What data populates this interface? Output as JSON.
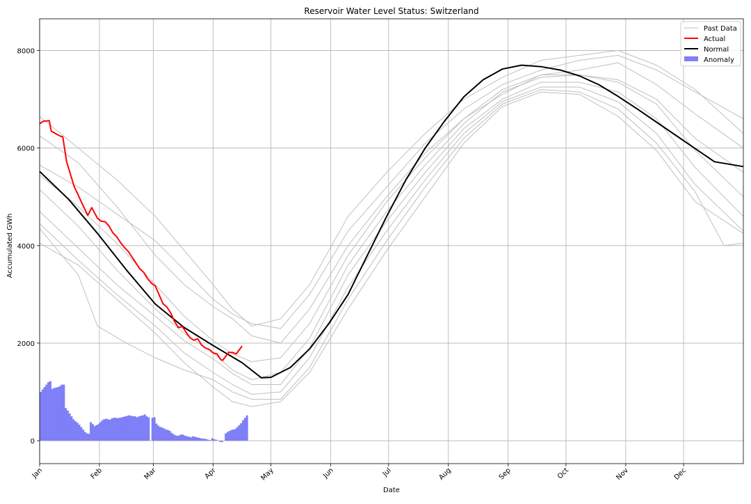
{
  "chart_data": {
    "type": "line",
    "title": "Reservoir Water Level Status: Switzerland",
    "xlabel": "Date",
    "ylabel": "Accumulated GWh",
    "x_ticks": [
      "Jan",
      "Feb",
      "Mar",
      "Apr",
      "May",
      "Jun",
      "Jul",
      "Aug",
      "Sep",
      "Oct",
      "Nov",
      "Dec"
    ],
    "y_ticks": [
      0,
      2000,
      4000,
      6000,
      8000
    ],
    "xlim": [
      0,
      365
    ],
    "ylim": [
      -470,
      8650
    ],
    "grid": true,
    "legend": {
      "placement": "top-right",
      "entries": [
        "Past Data",
        "Actual",
        "Normal",
        "Anomaly"
      ]
    },
    "colors": {
      "past": "#bfbfbf",
      "actual": "#ff0000",
      "normal": "#000000",
      "anomaly": "#7f7ff7"
    },
    "series": [
      {
        "name": "Normal",
        "x": [
          0,
          15,
          30,
          45,
          60,
          75,
          90,
          105,
          115,
          120,
          130,
          140,
          150,
          160,
          170,
          180,
          190,
          200,
          210,
          220,
          230,
          240,
          250,
          260,
          270,
          280,
          290,
          300,
          310,
          320,
          330,
          340,
          350,
          365
        ],
        "values": [
          5520,
          4950,
          4250,
          3500,
          2800,
          2320,
          1950,
          1600,
          1290,
          1300,
          1500,
          1880,
          2400,
          3000,
          3800,
          4600,
          5350,
          6000,
          6550,
          7050,
          7400,
          7620,
          7700,
          7670,
          7600,
          7480,
          7300,
          7060,
          6800,
          6530,
          6260,
          5990,
          5720,
          5620
        ]
      },
      {
        "name": "Actual",
        "x": [
          0,
          2,
          5,
          6,
          9,
          11,
          12,
          14,
          18,
          19,
          21,
          23,
          25,
          27,
          30,
          32,
          34,
          36,
          38,
          40,
          42,
          44,
          46,
          48,
          50,
          52,
          54,
          56,
          58,
          60,
          62,
          64,
          66,
          68,
          70,
          72,
          74,
          76,
          78,
          80,
          82,
          84,
          86,
          88,
          90,
          92,
          94,
          95,
          98,
          100,
          102,
          105
        ],
        "values": [
          6500,
          6550,
          6560,
          6350,
          6280,
          6240,
          6230,
          5720,
          5200,
          5120,
          4950,
          4780,
          4620,
          4780,
          4560,
          4500,
          4490,
          4400,
          4260,
          4180,
          4060,
          3960,
          3880,
          3760,
          3640,
          3520,
          3450,
          3320,
          3230,
          3170,
          2990,
          2810,
          2740,
          2620,
          2440,
          2320,
          2340,
          2220,
          2110,
          2060,
          2090,
          1960,
          1900,
          1870,
          1800,
          1780,
          1660,
          1650,
          1810,
          1810,
          1780,
          1940
        ]
      },
      {
        "name": "Past Data",
        "values": [
          [
            [
              0,
              6650
            ],
            [
              20,
              6000
            ],
            [
              40,
              5350
            ],
            [
              60,
              4600
            ],
            [
              75,
              3900
            ],
            [
              90,
              3200
            ],
            [
              100,
              2700
            ],
            [
              110,
              2350
            ],
            [
              125,
              2500
            ],
            [
              140,
              3200
            ],
            [
              160,
              4600
            ],
            [
              180,
              5500
            ],
            [
              200,
              6300
            ],
            [
              220,
              7000
            ],
            [
              240,
              7450
            ],
            [
              260,
              7800
            ],
            [
              280,
              7900
            ],
            [
              300,
              8000
            ],
            [
              320,
              7700
            ],
            [
              340,
              7200
            ],
            [
              365,
              6300
            ]
          ],
          [
            [
              0,
              5650
            ],
            [
              20,
              5200
            ],
            [
              40,
              4650
            ],
            [
              60,
              4100
            ],
            [
              75,
              3500
            ],
            [
              90,
              2900
            ],
            [
              100,
              2600
            ],
            [
              110,
              2400
            ],
            [
              125,
              2300
            ],
            [
              140,
              3000
            ],
            [
              160,
              4300
            ],
            [
              180,
              5200
            ],
            [
              200,
              6100
            ],
            [
              220,
              6800
            ],
            [
              240,
              7300
            ],
            [
              260,
              7600
            ],
            [
              280,
              7800
            ],
            [
              300,
              7900
            ],
            [
              320,
              7600
            ],
            [
              340,
              7150
            ],
            [
              365,
              6600
            ]
          ],
          [
            [
              0,
              6250
            ],
            [
              20,
              5700
            ],
            [
              40,
              4800
            ],
            [
              60,
              3800
            ],
            [
              75,
              3200
            ],
            [
              90,
              2750
            ],
            [
              100,
              2500
            ],
            [
              110,
              2150
            ],
            [
              125,
              2000
            ],
            [
              140,
              2700
            ],
            [
              160,
              4000
            ],
            [
              180,
              5000
            ],
            [
              200,
              5900
            ],
            [
              220,
              6600
            ],
            [
              240,
              7100
            ],
            [
              260,
              7500
            ],
            [
              280,
              7600
            ],
            [
              300,
              7750
            ],
            [
              320,
              7300
            ],
            [
              340,
              6700
            ],
            [
              365,
              6000
            ]
          ],
          [
            [
              0,
              5450
            ],
            [
              20,
              4800
            ],
            [
              40,
              4050
            ],
            [
              60,
              3200
            ],
            [
              75,
              2550
            ],
            [
              90,
              2050
            ],
            [
              100,
              1780
            ],
            [
              110,
              1620
            ],
            [
              125,
              1700
            ],
            [
              140,
              2400
            ],
            [
              160,
              3800
            ],
            [
              180,
              4900
            ],
            [
              200,
              5800
            ],
            [
              220,
              6600
            ],
            [
              240,
              7200
            ],
            [
              260,
              7500
            ],
            [
              280,
              7500
            ],
            [
              300,
              7400
            ],
            [
              320,
              7000
            ],
            [
              340,
              6200
            ],
            [
              365,
              5500
            ]
          ],
          [
            [
              0,
              5150
            ],
            [
              20,
              4400
            ],
            [
              40,
              3500
            ],
            [
              60,
              2700
            ],
            [
              75,
              2200
            ],
            [
              90,
              1800
            ],
            [
              100,
              1450
            ],
            [
              110,
              1250
            ],
            [
              125,
              1400
            ],
            [
              140,
              2100
            ],
            [
              160,
              3600
            ],
            [
              180,
              4700
            ],
            [
              200,
              5650
            ],
            [
              220,
              6500
            ],
            [
              240,
              7150
            ],
            [
              260,
              7450
            ],
            [
              280,
              7500
            ],
            [
              300,
              7350
            ],
            [
              320,
              6900
            ],
            [
              340,
              5950
            ],
            [
              365,
              5000
            ]
          ],
          [
            [
              0,
              4700
            ],
            [
              20,
              3950
            ],
            [
              40,
              3200
            ],
            [
              60,
              2550
            ],
            [
              75,
              2050
            ],
            [
              90,
              1680
            ],
            [
              100,
              1380
            ],
            [
              110,
              1150
            ],
            [
              125,
              1150
            ],
            [
              140,
              1900
            ],
            [
              160,
              3400
            ],
            [
              180,
              4500
            ],
            [
              200,
              5500
            ],
            [
              220,
              6400
            ],
            [
              240,
              7000
            ],
            [
              260,
              7350
            ],
            [
              280,
              7350
            ],
            [
              300,
              7150
            ],
            [
              320,
              6600
            ],
            [
              340,
              5600
            ],
            [
              365,
              4600
            ]
          ],
          [
            [
              0,
              4450
            ],
            [
              20,
              3700
            ],
            [
              40,
              3000
            ],
            [
              60,
              2350
            ],
            [
              75,
              1800
            ],
            [
              90,
              1400
            ],
            [
              100,
              1150
            ],
            [
              110,
              950
            ],
            [
              125,
              1000
            ],
            [
              140,
              1700
            ],
            [
              160,
              3150
            ],
            [
              180,
              4300
            ],
            [
              200,
              5350
            ],
            [
              220,
              6300
            ],
            [
              240,
              6950
            ],
            [
              260,
              7250
            ],
            [
              280,
              7250
            ],
            [
              300,
              6950
            ],
            [
              320,
              6300
            ],
            [
              340,
              5250
            ],
            [
              365,
              4300
            ]
          ],
          [
            [
              0,
              4350
            ],
            [
              20,
              3400
            ],
            [
              30,
              2350
            ],
            [
              45,
              2000
            ],
            [
              60,
              1700
            ],
            [
              75,
              1450
            ],
            [
              90,
              1250
            ],
            [
              100,
              1000
            ],
            [
              110,
              850
            ],
            [
              125,
              850
            ],
            [
              140,
              1500
            ],
            [
              160,
              2900
            ],
            [
              180,
              4100
            ],
            [
              200,
              5200
            ],
            [
              220,
              6200
            ],
            [
              240,
              6900
            ],
            [
              260,
              7200
            ],
            [
              280,
              7150
            ],
            [
              300,
              6800
            ],
            [
              320,
              6100
            ],
            [
              340,
              5100
            ],
            [
              355,
              4000
            ],
            [
              365,
              4050
            ]
          ],
          [
            [
              0,
              4050
            ],
            [
              20,
              3600
            ],
            [
              40,
              2900
            ],
            [
              60,
              2200
            ],
            [
              75,
              1600
            ],
            [
              90,
              1100
            ],
            [
              100,
              800
            ],
            [
              110,
              700
            ],
            [
              125,
              800
            ],
            [
              140,
              1400
            ],
            [
              160,
              2700
            ],
            [
              180,
              3900
            ],
            [
              200,
              5000
            ],
            [
              220,
              6100
            ],
            [
              240,
              6850
            ],
            [
              260,
              7150
            ],
            [
              280,
              7100
            ],
            [
              300,
              6650
            ],
            [
              320,
              5950
            ],
            [
              340,
              4900
            ],
            [
              365,
              4250
            ]
          ]
        ]
      },
      {
        "name": "Anomaly",
        "x_start": 0,
        "x_step": 1,
        "values": [
          1000,
          1050,
          1100,
          1150,
          1200,
          1220,
          1060,
          1080,
          1090,
          1100,
          1120,
          1150,
          1150,
          670,
          620,
          560,
          500,
          440,
          400,
          370,
          330,
          280,
          230,
          180,
          150,
          140,
          380,
          340,
          300,
          320,
          340,
          380,
          420,
          440,
          450,
          440,
          430,
          460,
          470,
          470,
          460,
          470,
          480,
          490,
          500,
          510,
          520,
          510,
          500,
          500,
          480,
          500,
          510,
          520,
          540,
          500,
          480,
          0,
          470,
          480,
          350,
          310,
          280,
          270,
          250,
          230,
          220,
          200,
          160,
          130,
          110,
          100,
          110,
          130,
          120,
          100,
          90,
          80,
          70,
          90,
          80,
          70,
          60,
          50,
          40,
          40,
          30,
          20,
          10,
          50,
          30,
          20,
          0,
          -20,
          -30,
          0,
          150,
          180,
          200,
          220,
          230,
          240,
          280,
          320,
          360,
          420,
          470,
          520
        ]
      }
    ]
  }
}
